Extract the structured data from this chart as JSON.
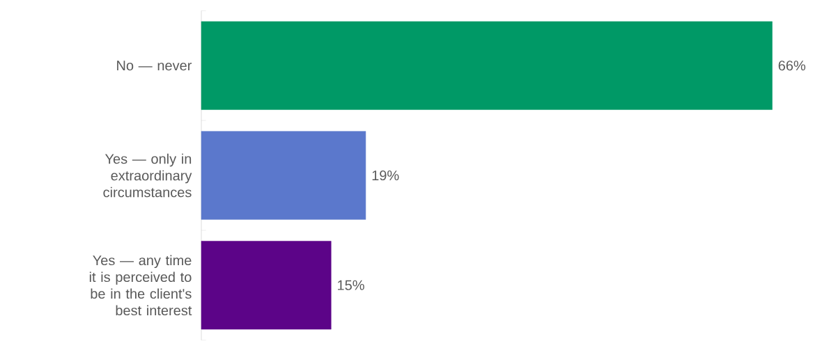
{
  "chart_data": {
    "type": "bar",
    "orientation": "horizontal",
    "categories": [
      "No — never",
      "Yes — only in extraordinary circumstances",
      "Yes — any time it is perceived to be in the client's best interest"
    ],
    "values": [
      66,
      19,
      15
    ],
    "colors": [
      "#009966",
      "#5b78cc",
      "#5c0488"
    ],
    "value_labels": [
      "66%",
      "19%",
      "15%"
    ]
  }
}
